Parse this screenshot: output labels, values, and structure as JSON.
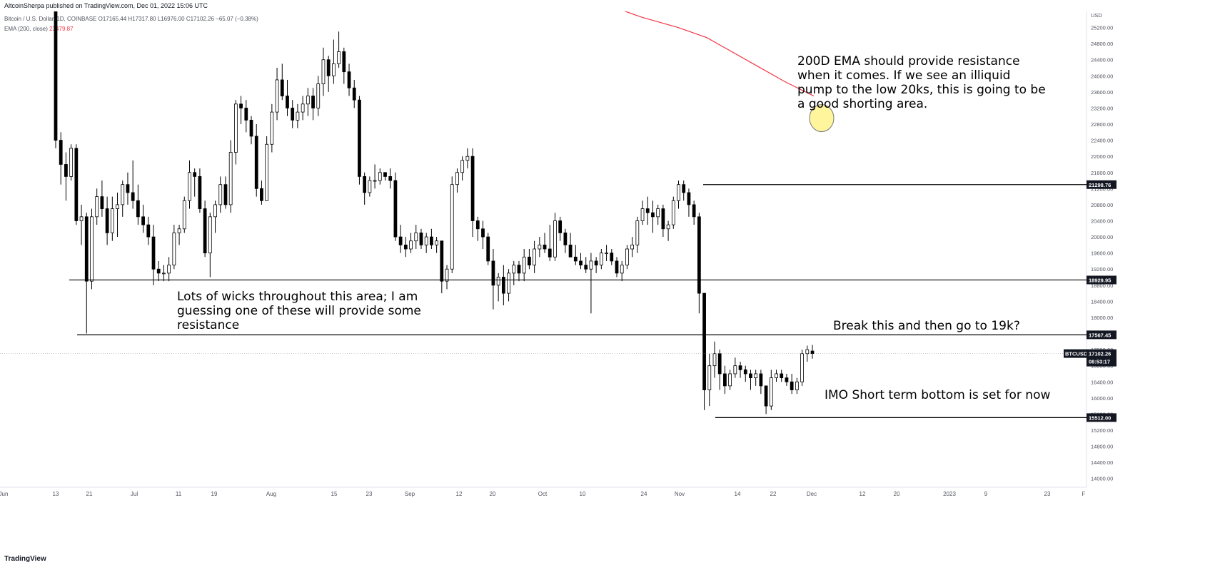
{
  "header": {
    "publisher": "AltcoinSherpa published on TradingView.com, Dec 01, 2022 15:06 UTC",
    "symbol_line": "Bitcoin / U.S. Dollar, 1D, COINBASE  O17165.44  H17317.80  L16976.00  C17102.26  −65.07 (−0.38%)",
    "ema_label": "EMA (200, close)",
    "ema_value": "23479.87"
  },
  "footer": {
    "logo": "TradingView"
  },
  "colors": {
    "up": "#000000",
    "down": "#000000",
    "ema": "#f23645",
    "level": "#000000",
    "tag_bg": "#131722",
    "marker": "#fff59d"
  },
  "chart_data": {
    "type": "candlestick",
    "symbol": "BTCUSD",
    "timeframe": "1D",
    "y_axis": {
      "unit": "USD",
      "ylim": [
        13800,
        25600
      ],
      "ticks": [
        14000,
        14400,
        14800,
        15200,
        15600,
        16000,
        16400,
        16800,
        17200,
        17600,
        18000,
        18400,
        18800,
        19200,
        19600,
        20000,
        20400,
        20800,
        21200,
        21600,
        22000,
        22400,
        22800,
        23200,
        23600,
        24000,
        24400,
        24800,
        25200
      ]
    },
    "x_axis": {
      "labels": [
        "Jun",
        "13",
        "21",
        "Jul",
        "11",
        "19",
        "Aug",
        "15",
        "23",
        "Sep",
        "12",
        "20",
        "Oct",
        "10",
        "24",
        "Nov",
        "14",
        "22",
        "Dec",
        "12",
        "20",
        "2023",
        "9",
        "23",
        "F"
      ]
    },
    "candles": [
      [
        25700,
        25800,
        22200,
        22400
      ],
      [
        22400,
        22600,
        21300,
        21800
      ],
      [
        21800,
        22100,
        20900,
        21500
      ],
      [
        21500,
        22300,
        21400,
        22200
      ],
      [
        22200,
        22300,
        20300,
        20400
      ],
      [
        20400,
        20800,
        19800,
        20500
      ],
      [
        20500,
        20600,
        17600,
        18900
      ],
      [
        18900,
        20700,
        18700,
        20500
      ],
      [
        20500,
        21200,
        20300,
        21000
      ],
      [
        21000,
        21400,
        20500,
        20700
      ],
      [
        20700,
        21000,
        19800,
        20100
      ],
      [
        20100,
        21000,
        19900,
        20700
      ],
      [
        20700,
        21100,
        20000,
        20800
      ],
      [
        20800,
        21400,
        20500,
        21300
      ],
      [
        21300,
        21600,
        20800,
        21100
      ],
      [
        21100,
        21900,
        20700,
        20900
      ],
      [
        20900,
        21300,
        20300,
        20500
      ],
      [
        20500,
        20800,
        20100,
        20300
      ],
      [
        20300,
        20500,
        19800,
        20000
      ],
      [
        20000,
        20300,
        18800,
        19200
      ],
      [
        19200,
        19400,
        18900,
        19100
      ],
      [
        19100,
        19300,
        18900,
        19100
      ],
      [
        19100,
        19500,
        18900,
        19300
      ],
      [
        19300,
        20300,
        19200,
        20100
      ],
      [
        20100,
        20300,
        19800,
        20200
      ],
      [
        20200,
        21000,
        20100,
        20900
      ],
      [
        20900,
        21900,
        20700,
        21600
      ],
      [
        21600,
        21700,
        21000,
        21500
      ],
      [
        21500,
        21700,
        20600,
        20700
      ],
      [
        20700,
        20900,
        19500,
        19600
      ],
      [
        19600,
        20600,
        19000,
        20500
      ],
      [
        20500,
        20900,
        20100,
        20800
      ],
      [
        20800,
        21500,
        20600,
        21300
      ],
      [
        21300,
        21500,
        20700,
        20800
      ],
      [
        20800,
        22400,
        20600,
        22100
      ],
      [
        22100,
        23400,
        21800,
        23300
      ],
      [
        23300,
        23500,
        22800,
        23200
      ],
      [
        23200,
        23400,
        22600,
        22900
      ],
      [
        22900,
        23000,
        22300,
        22500
      ],
      [
        22500,
        22800,
        21000,
        21200
      ],
      [
        21200,
        21400,
        20800,
        20900
      ],
      [
        20900,
        22500,
        20900,
        22300
      ],
      [
        22300,
        23300,
        22100,
        23100
      ],
      [
        23100,
        24200,
        22900,
        23900
      ],
      [
        23900,
        24300,
        23400,
        23500
      ],
      [
        23500,
        23900,
        23000,
        23200
      ],
      [
        23200,
        23400,
        22700,
        22900
      ],
      [
        22900,
        23300,
        22700,
        23100
      ],
      [
        23100,
        23500,
        22900,
        23300
      ],
      [
        23300,
        23700,
        23000,
        23500
      ],
      [
        23500,
        23700,
        22900,
        23200
      ],
      [
        23200,
        24000,
        23000,
        23800
      ],
      [
        23800,
        24700,
        23500,
        24400
      ],
      [
        24400,
        24500,
        23600,
        24000
      ],
      [
        24000,
        24900,
        23800,
        24300
      ],
      [
        24300,
        25100,
        24200,
        24600
      ],
      [
        24600,
        24700,
        23800,
        24100
      ],
      [
        24100,
        24300,
        23500,
        23700
      ],
      [
        23700,
        23900,
        23200,
        23400
      ],
      [
        23400,
        23500,
        21300,
        21500
      ],
      [
        21500,
        21600,
        20800,
        21100
      ],
      [
        21100,
        21500,
        21000,
        21400
      ],
      [
        21400,
        21800,
        21200,
        21400
      ],
      [
        21400,
        21700,
        21300,
        21600
      ],
      [
        21600,
        21600,
        21400,
        21500
      ],
      [
        21500,
        21700,
        21200,
        21400
      ],
      [
        21400,
        21600,
        19900,
        20000
      ],
      [
        20000,
        20300,
        19600,
        19800
      ],
      [
        19800,
        20000,
        19500,
        19700
      ],
      [
        19700,
        20100,
        19600,
        19900
      ],
      [
        19900,
        20300,
        19700,
        20100
      ],
      [
        20100,
        20200,
        19700,
        19800
      ],
      [
        19800,
        20100,
        19600,
        20000
      ],
      [
        20000,
        20200,
        19700,
        19800
      ],
      [
        19800,
        20000,
        19600,
        19900
      ],
      [
        19900,
        19900,
        18600,
        18900
      ],
      [
        18900,
        19300,
        18700,
        19200
      ],
      [
        19200,
        21500,
        19100,
        21300
      ],
      [
        21300,
        21700,
        21100,
        21600
      ],
      [
        21600,
        22000,
        21400,
        21900
      ],
      [
        21900,
        22200,
        21700,
        22000
      ],
      [
        22000,
        22200,
        20000,
        20400
      ],
      [
        20400,
        20500,
        19900,
        20200
      ],
      [
        20200,
        20400,
        19700,
        20000
      ],
      [
        20000,
        20100,
        19300,
        19400
      ],
      [
        19400,
        19700,
        18200,
        18800
      ],
      [
        18800,
        19100,
        18400,
        19000
      ],
      [
        19000,
        19300,
        18300,
        18600
      ],
      [
        18600,
        19200,
        18400,
        19100
      ],
      [
        19100,
        19400,
        18800,
        19300
      ],
      [
        19300,
        19400,
        18900,
        19100
      ],
      [
        19100,
        19700,
        18900,
        19500
      ],
      [
        19500,
        19700,
        19200,
        19300
      ],
      [
        19300,
        19900,
        19100,
        19700
      ],
      [
        19700,
        20000,
        19500,
        19800
      ],
      [
        19800,
        20100,
        19600,
        19700
      ],
      [
        19700,
        20300,
        19400,
        19500
      ],
      [
        19500,
        20600,
        19400,
        20400
      ],
      [
        20400,
        20500,
        19900,
        20100
      ],
      [
        20100,
        20200,
        19600,
        19800
      ],
      [
        19800,
        20100,
        19600,
        19500
      ],
      [
        19500,
        19800,
        19300,
        19400
      ],
      [
        19400,
        19600,
        19200,
        19300
      ],
      [
        19300,
        19500,
        19100,
        19200
      ],
      [
        19200,
        19600,
        18100,
        19400
      ],
      [
        19400,
        19500,
        19100,
        19300
      ],
      [
        19300,
        19700,
        19200,
        19600
      ],
      [
        19600,
        19800,
        19400,
        19600
      ],
      [
        19600,
        19700,
        19300,
        19400
      ],
      [
        19400,
        19500,
        19000,
        19100
      ],
      [
        19100,
        19400,
        18900,
        19300
      ],
      [
        19300,
        19800,
        19200,
        19700
      ],
      [
        19700,
        20000,
        19500,
        19800
      ],
      [
        19800,
        20500,
        19600,
        20400
      ],
      [
        20400,
        20900,
        20300,
        20700
      ],
      [
        20700,
        21000,
        20300,
        20600
      ],
      [
        20600,
        20900,
        20100,
        20500
      ],
      [
        20500,
        20800,
        20300,
        20700
      ],
      [
        20700,
        20800,
        20000,
        20200
      ],
      [
        20200,
        20400,
        19900,
        20300
      ],
      [
        20300,
        21000,
        20200,
        20900
      ],
      [
        20900,
        21400,
        20700,
        21300
      ],
      [
        21300,
        21400,
        20900,
        21100
      ],
      [
        21100,
        21200,
        20500,
        20800
      ],
      [
        20800,
        20900,
        20300,
        20500
      ],
      [
        20500,
        20600,
        18100,
        18600
      ],
      [
        18600,
        18600,
        15700,
        16200
      ],
      [
        16200,
        17100,
        15800,
        16800
      ],
      [
        16800,
        17400,
        16500,
        17100
      ],
      [
        17100,
        17200,
        16200,
        16600
      ],
      [
        16600,
        16800,
        16100,
        16300
      ],
      [
        16300,
        16700,
        16200,
        16600
      ],
      [
        16600,
        17000,
        16500,
        16800
      ],
      [
        16800,
        16900,
        16500,
        16700
      ],
      [
        16700,
        16800,
        16400,
        16600
      ],
      [
        16600,
        16700,
        16200,
        16500
      ],
      [
        16500,
        16700,
        16300,
        16600
      ],
      [
        16600,
        16700,
        16100,
        16300
      ],
      [
        16300,
        16300,
        15600,
        15800
      ],
      [
        15800,
        16700,
        15700,
        16500
      ],
      [
        16500,
        16700,
        16400,
        16600
      ],
      [
        16600,
        16700,
        16400,
        16500
      ],
      [
        16500,
        16600,
        16300,
        16400
      ],
      [
        16400,
        16600,
        16100,
        16200
      ],
      [
        16200,
        16500,
        16100,
        16400
      ],
      [
        16400,
        17200,
        16300,
        17100
      ],
      [
        17100,
        17300,
        16900,
        17200
      ],
      [
        17165.44,
        17317.8,
        16976.0,
        17102.26
      ]
    ],
    "ema_200": [
      [
        92,
        25500
      ],
      [
        120,
        24900
      ],
      [
        160,
        24700
      ],
      [
        180,
        24400
      ],
      [
        210,
        24100
      ],
      [
        234,
        23479.87
      ]
    ],
    "levels": [
      {
        "price": "21298.76",
        "value": 21298.76
      },
      {
        "price": "18929.95",
        "value": 18929.95
      },
      {
        "price": "17567.45",
        "value": 17567.45
      },
      {
        "price": "15512.00",
        "value": 15512.0
      }
    ],
    "last_price": {
      "label": "BTCUSD",
      "price": "17102.26",
      "countdown": "08:53:17"
    },
    "annotations": [
      {
        "id": "ema-note",
        "lines": [
          "200D EMA should provide resistance",
          "when it comes. If we see an illiquid",
          "pump to the low 20ks, this is going to be",
          "a good shorting area."
        ]
      },
      {
        "id": "wicks-note",
        "lines": [
          "Lots of wicks throughout this area; I am",
          "guessing one of these will provide some",
          "resistance"
        ]
      },
      {
        "id": "break-note",
        "lines": [
          "Break this and then go to 19k?"
        ]
      },
      {
        "id": "bottom-note",
        "lines": [
          "IMO Short term bottom is set for now"
        ]
      }
    ]
  }
}
